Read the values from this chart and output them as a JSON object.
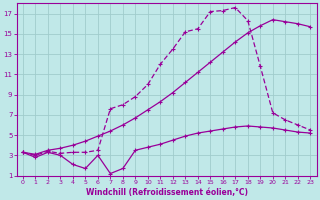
{
  "title": "",
  "xlabel": "Windchill (Refroidissement éolien,°C)",
  "ylabel": "",
  "bg_color": "#c0e8e8",
  "grid_color": "#a0cccc",
  "line_color": "#990099",
  "xlim": [
    -0.5,
    23.5
  ],
  "ylim": [
    1,
    18
  ],
  "xticks": [
    0,
    1,
    2,
    3,
    4,
    5,
    6,
    7,
    8,
    9,
    10,
    11,
    12,
    13,
    14,
    15,
    16,
    17,
    18,
    19,
    20,
    21,
    22,
    23
  ],
  "yticks": [
    1,
    3,
    5,
    7,
    9,
    11,
    13,
    15,
    17
  ],
  "line1_x": [
    0,
    1,
    2,
    3,
    4,
    5,
    6,
    7,
    8,
    9,
    10,
    11,
    12,
    13,
    14,
    15,
    16,
    17,
    18,
    19,
    20,
    21,
    22,
    23
  ],
  "line1_y": [
    3.3,
    2.8,
    3.3,
    3.0,
    2.1,
    1.7,
    3.0,
    1.2,
    1.7,
    3.5,
    3.8,
    4.1,
    4.5,
    4.9,
    5.2,
    5.4,
    5.6,
    5.8,
    5.9,
    5.8,
    5.7,
    5.5,
    5.3,
    5.2
  ],
  "line2_x": [
    0,
    1,
    2,
    3,
    4,
    5,
    6,
    7,
    8,
    9,
    10,
    11,
    12,
    13,
    14,
    15,
    16,
    17,
    18,
    19,
    20,
    21,
    22,
    23
  ],
  "line2_y": [
    3.3,
    3.0,
    3.4,
    3.2,
    3.3,
    3.3,
    3.5,
    7.6,
    8.0,
    8.8,
    10.0,
    12.0,
    13.5,
    15.2,
    15.5,
    17.2,
    17.3,
    17.6,
    16.3,
    11.8,
    7.2,
    6.5,
    6.0,
    5.5
  ],
  "line3_x": [
    0,
    1,
    2,
    3,
    4,
    5,
    6,
    7,
    8,
    9,
    10,
    11,
    12,
    13,
    14,
    15,
    16,
    17,
    18,
    19,
    20,
    21,
    22,
    23
  ],
  "line3_y": [
    3.3,
    3.1,
    3.5,
    3.7,
    4.0,
    4.4,
    4.9,
    5.4,
    6.0,
    6.7,
    7.5,
    8.3,
    9.2,
    10.2,
    11.2,
    12.2,
    13.2,
    14.2,
    15.1,
    15.8,
    16.4,
    16.2,
    16.0,
    15.7
  ]
}
